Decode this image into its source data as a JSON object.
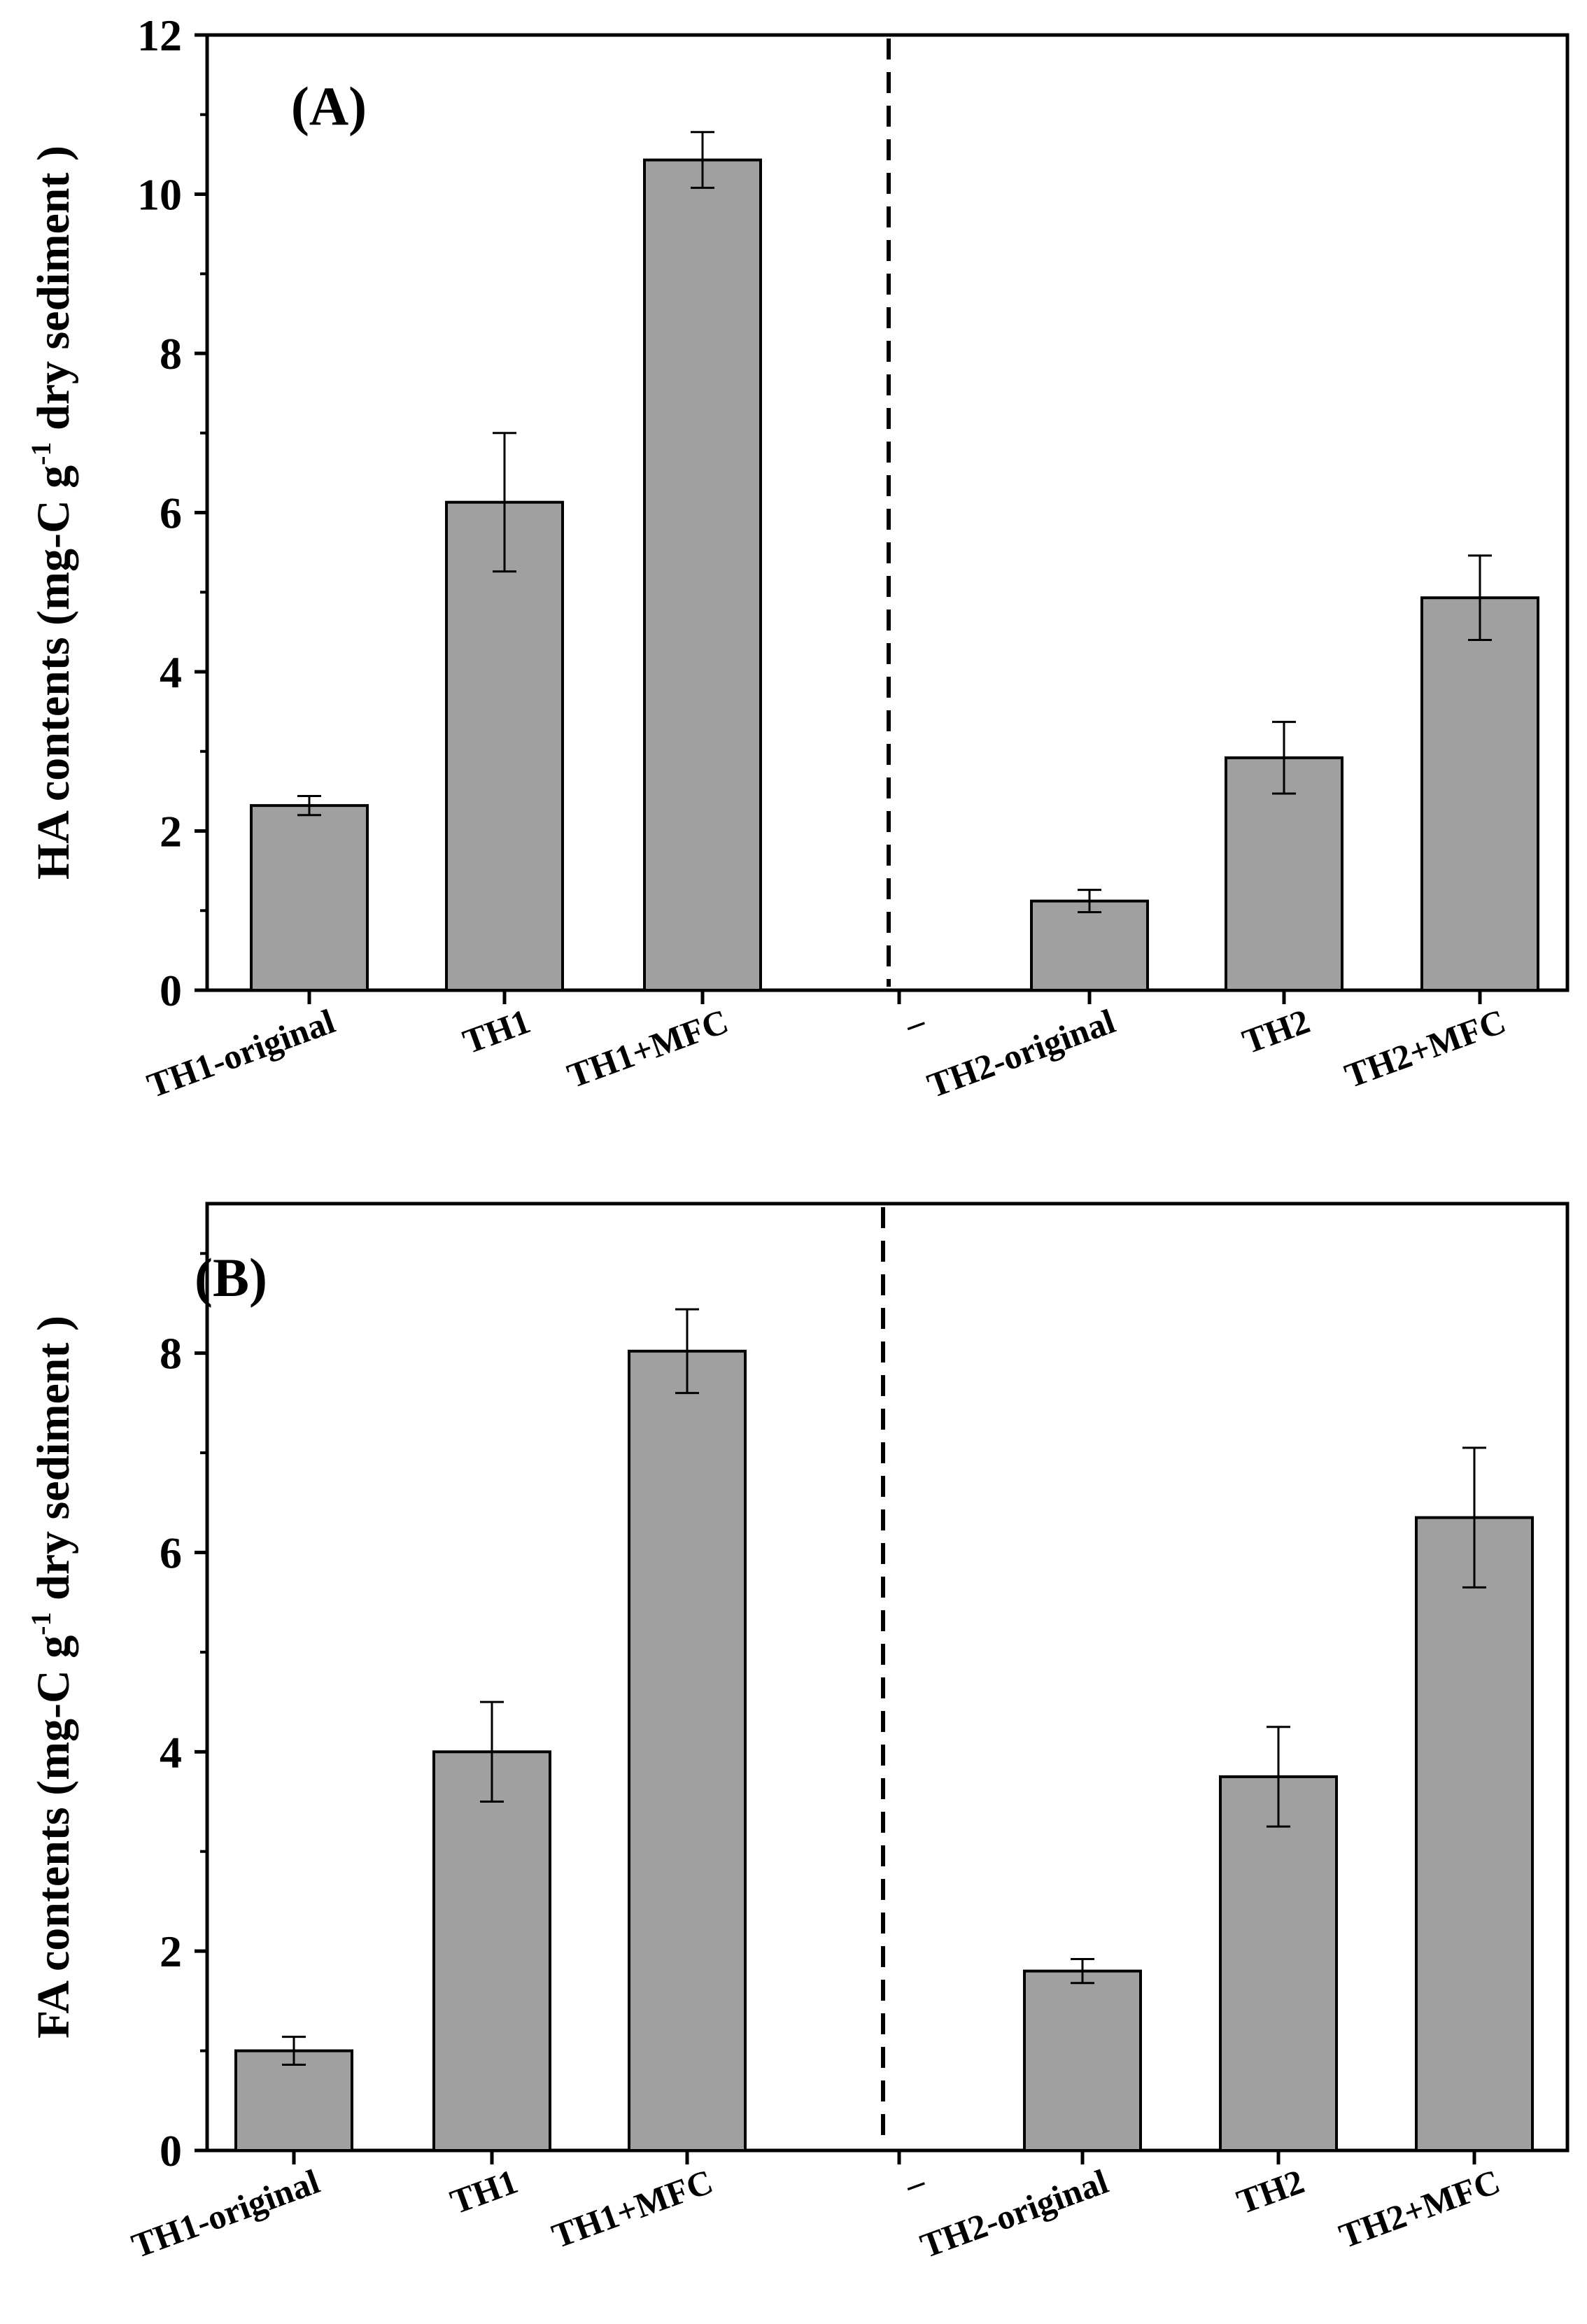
{
  "chart_data": [
    {
      "type": "bar",
      "panel_label": "(A)",
      "ylabel": {
        "prefix": "HA contents (mg-C g",
        "sup": "-1",
        "suffix": " dry sedimen",
        "suffix2": "t )"
      },
      "categories": [
        "TH1-original",
        "TH1",
        "TH1+MFC",
        "–",
        "TH2-original",
        "TH2",
        "TH2+MFC"
      ],
      "values": [
        2.32,
        6.13,
        10.43,
        null,
        1.12,
        2.92,
        4.93
      ],
      "errors": [
        0.12,
        0.87,
        0.35,
        null,
        0.14,
        0.45,
        0.53
      ],
      "ylim": [
        0,
        12
      ],
      "yticks": [
        0,
        2,
        4,
        6,
        8,
        10,
        12
      ],
      "divider_after": "TH1+MFC",
      "bar_color": "#a0a0a0"
    },
    {
      "type": "bar",
      "panel_label": "(B)",
      "ylabel": {
        "prefix": "FA contents (mg-C g",
        "sup": "-1",
        "suffix": " dry sedimen",
        "suffix2": "t )"
      },
      "categories": [
        "TH1-original",
        "TH1",
        "TH1+MFC",
        "–",
        "TH2-original",
        "TH2",
        "TH2+MFC"
      ],
      "values": [
        1.0,
        4.0,
        8.02,
        null,
        1.8,
        3.75,
        6.35
      ],
      "errors": [
        0.14,
        0.5,
        0.42,
        null,
        0.12,
        0.5,
        0.7
      ],
      "ylim": [
        0,
        9.5
      ],
      "yticks": [
        0,
        2,
        4,
        6,
        8
      ],
      "divider_after": "TH1+MFC",
      "bar_color": "#a0a0a0"
    }
  ]
}
